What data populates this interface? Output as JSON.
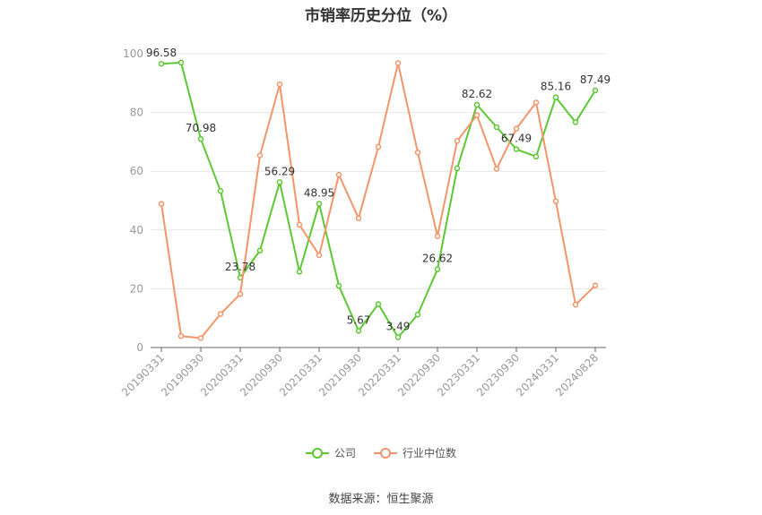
{
  "chart_data": {
    "type": "line",
    "title": "市销率历史分位（%）",
    "ylim": [
      0,
      100
    ],
    "yticks": [
      0,
      20,
      40,
      60,
      80,
      100
    ],
    "xtick_labels": [
      "20190331",
      "20190930",
      "20200331",
      "20200930",
      "20210331",
      "20210930",
      "20220331",
      "20220930",
      "20230331",
      "20230930",
      "20240331",
      "20240828"
    ],
    "x": [
      "20190331",
      "20190630",
      "20190930",
      "20191231",
      "20200331",
      "20200630",
      "20200930",
      "20201231",
      "20210331",
      "20210630",
      "20210930",
      "20211231",
      "20220331",
      "20220630",
      "20220930",
      "20221231",
      "20230331",
      "20230630",
      "20230930",
      "20231231",
      "20240331",
      "20240630",
      "20240828"
    ],
    "series": [
      {
        "name": "公司",
        "color": "#5cc833",
        "values": [
          96.58,
          97.0,
          70.98,
          53.3,
          23.78,
          33.0,
          56.29,
          25.8,
          48.95,
          21.0,
          5.67,
          14.8,
          3.49,
          11.2,
          26.62,
          61.0,
          82.62,
          75.0,
          67.49,
          65.0,
          85.16,
          76.7,
          87.49
        ],
        "labels": [
          "96.58",
          "",
          "70.98",
          "",
          "23.78",
          "",
          "56.29",
          "",
          "48.95",
          "",
          "5.67",
          "",
          "3.49",
          "",
          "26.62",
          "",
          "82.62",
          "",
          "67.49",
          "",
          "85.16",
          "",
          "87.49"
        ]
      },
      {
        "name": "行业中位数",
        "color": "#f2956a",
        "values": [
          48.9,
          3.9,
          3.2,
          11.4,
          18.2,
          65.4,
          89.6,
          41.8,
          31.4,
          58.8,
          44.0,
          68.3,
          96.8,
          66.4,
          37.9,
          70.3,
          79.1,
          60.8,
          74.5,
          83.4,
          49.8,
          14.6,
          21.1
        ]
      }
    ],
    "grid": true,
    "legend_position": "bottom"
  },
  "source_text": "数据来源：恒生聚源"
}
